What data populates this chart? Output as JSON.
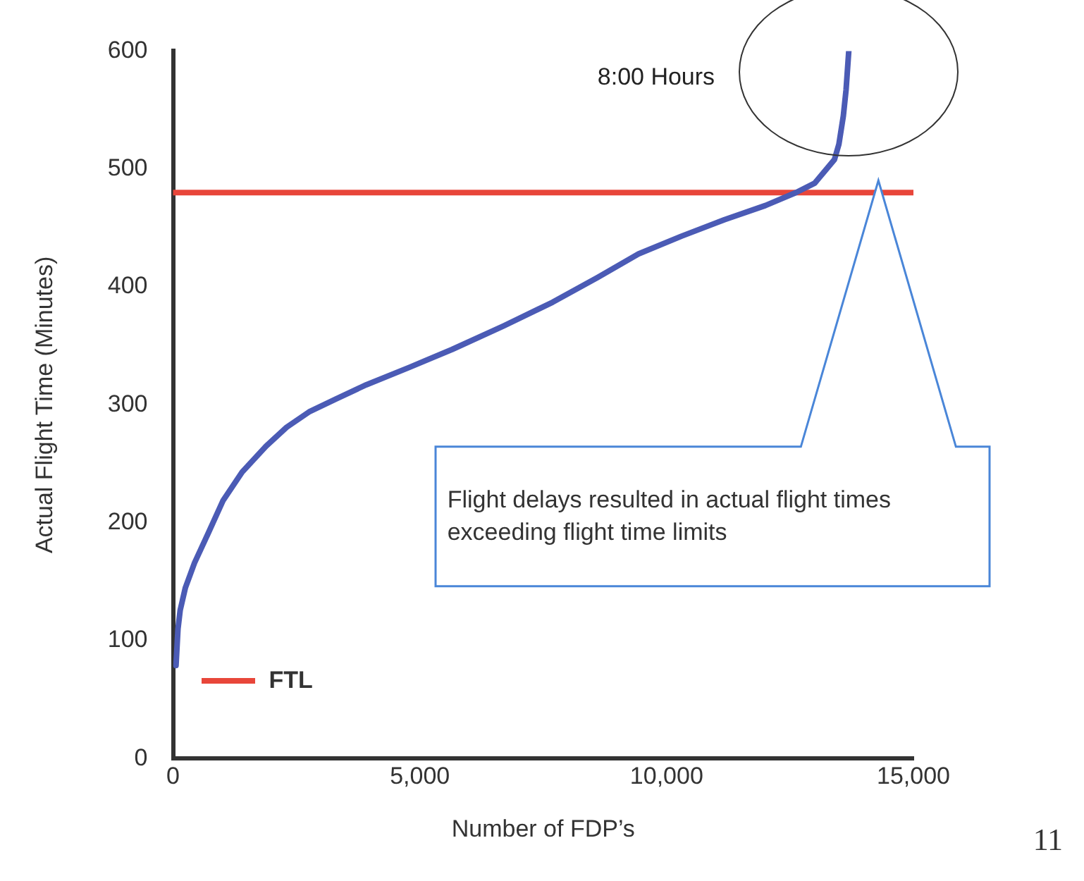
{
  "chart_data": {
    "type": "line",
    "xlabel": "Number of FDP’s",
    "ylabel": "Actual Flight Time (Minutes)",
    "xlim": [
      0,
      15000
    ],
    "xticks": [
      {
        "value": 0,
        "label": "0"
      },
      {
        "value": 5000,
        "label": "5,000"
      },
      {
        "value": 10000,
        "label": "10,000"
      },
      {
        "value": 15000,
        "label": "15,000"
      }
    ],
    "ylim": [
      0,
      600
    ],
    "yticks": [
      0,
      100,
      200,
      300,
      400,
      500,
      600
    ],
    "series": [
      {
        "color": "#4b5bb5",
        "x": [
          60,
          100,
          145,
          250,
          435,
          700,
          1015,
          1400,
          1885,
          2300,
          2755,
          3300,
          3915,
          4800,
          5655,
          6700,
          7690,
          8600,
          9430,
          10300,
          11170,
          12000,
          12620,
          13000,
          13200,
          13400,
          13490,
          13580,
          13635,
          13690
        ],
        "values": [
          79,
          110,
          126,
          145,
          166,
          190,
          219,
          243,
          265,
          281,
          294,
          305,
          317,
          332,
          347,
          367,
          387,
          408,
          428,
          443,
          457,
          469,
          480,
          488,
          498,
          508,
          521,
          545,
          567,
          600
        ]
      },
      {
        "name": "FTL",
        "color": "#e8463a",
        "x": [
          0,
          15000
        ],
        "values": [
          480,
          480
        ]
      }
    ],
    "legend": "bottom left",
    "grid": false,
    "marker": "none",
    "line_style": "solid",
    "annotations": [
      "8:00 Hours",
      "Flight delays resulted in actual flight times exceeding flight time limits",
      "11"
    ]
  }
}
